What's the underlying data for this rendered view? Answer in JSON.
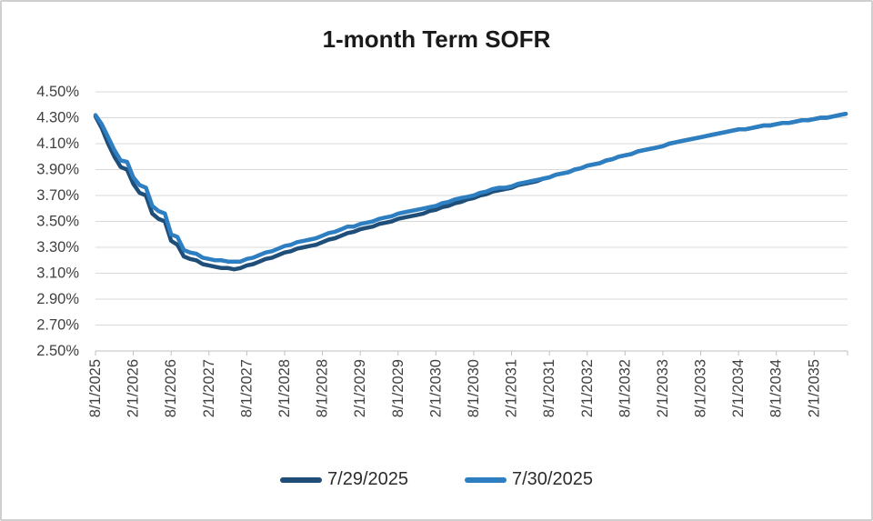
{
  "title": "1-month Term SOFR",
  "colors": {
    "series_7_29": "#1f4e79",
    "series_7_30": "#2d7fc1",
    "gridline": "#d9d9d9",
    "axis_line": "#bfbfbf",
    "axis_label_text": "#404040",
    "title_text": "#1a1a1a",
    "frame_border": "#cfcfcf",
    "background": "#ffffff"
  },
  "chart_data": {
    "type": "line",
    "title": "1-month Term SOFR",
    "xlabel": "",
    "ylabel": "",
    "x_unit": "monthly forward dates, Aug 2025 through Jul 2035",
    "x_tick_labels": [
      "8/1/2025",
      "2/1/2026",
      "8/1/2026",
      "2/1/2027",
      "8/1/2027",
      "2/1/2028",
      "8/1/2028",
      "2/1/2029",
      "8/1/2029",
      "2/1/2030",
      "8/1/2030",
      "2/1/2031",
      "8/1/2031",
      "2/1/2032",
      "8/1/2032",
      "2/1/2033",
      "8/1/2033",
      "2/1/2034",
      "8/1/2034",
      "2/1/2035"
    ],
    "y_tick_labels": [
      "4.50%",
      "4.30%",
      "4.10%",
      "3.90%",
      "3.70%",
      "3.50%",
      "3.30%",
      "3.10%",
      "2.90%",
      "2.70%",
      "2.50%"
    ],
    "ylim": [
      2.5,
      4.5
    ],
    "y_tick_step": 0.2,
    "grid": "horizontal",
    "legend_position": "bottom",
    "series": [
      {
        "name": "7/29/2025",
        "color": "#1f4e79",
        "values": [
          4.31,
          4.22,
          4.1,
          4.0,
          3.92,
          3.9,
          3.79,
          3.72,
          3.7,
          3.56,
          3.52,
          3.5,
          3.35,
          3.32,
          3.23,
          3.21,
          3.2,
          3.17,
          3.16,
          3.15,
          3.14,
          3.14,
          3.13,
          3.14,
          3.16,
          3.17,
          3.19,
          3.21,
          3.22,
          3.24,
          3.26,
          3.27,
          3.29,
          3.3,
          3.31,
          3.32,
          3.34,
          3.36,
          3.37,
          3.39,
          3.41,
          3.42,
          3.44,
          3.45,
          3.46,
          3.48,
          3.49,
          3.5,
          3.52,
          3.53,
          3.54,
          3.55,
          3.56,
          3.58,
          3.59,
          3.61,
          3.62,
          3.64,
          3.65,
          3.67,
          3.68,
          3.7,
          3.71,
          3.73,
          3.74,
          3.75,
          3.76,
          3.78,
          3.79,
          3.8,
          3.81,
          3.83,
          3.84,
          3.86,
          3.87,
          3.88,
          3.9,
          3.91,
          3.93,
          3.94,
          3.95,
          3.97,
          3.98,
          4.0,
          4.01,
          4.02,
          4.04,
          4.05,
          4.06,
          4.07,
          4.08,
          4.1,
          4.11,
          4.12,
          4.13,
          4.14,
          4.15,
          4.16,
          4.17,
          4.18,
          4.19,
          4.2,
          4.21,
          4.21,
          4.22,
          4.23,
          4.24,
          4.24,
          4.25,
          4.26,
          4.26,
          4.27,
          4.28,
          4.28,
          4.29,
          4.3,
          4.3,
          4.31,
          4.32,
          4.33
        ]
      },
      {
        "name": "7/30/2025",
        "color": "#2d7fc1",
        "values": [
          4.32,
          4.25,
          4.15,
          4.05,
          3.97,
          3.96,
          3.84,
          3.78,
          3.76,
          3.62,
          3.58,
          3.56,
          3.4,
          3.38,
          3.28,
          3.26,
          3.25,
          3.22,
          3.21,
          3.2,
          3.2,
          3.19,
          3.19,
          3.19,
          3.21,
          3.22,
          3.24,
          3.26,
          3.27,
          3.29,
          3.31,
          3.32,
          3.34,
          3.35,
          3.36,
          3.37,
          3.39,
          3.41,
          3.42,
          3.44,
          3.46,
          3.46,
          3.48,
          3.49,
          3.5,
          3.52,
          3.53,
          3.54,
          3.56,
          3.57,
          3.58,
          3.59,
          3.6,
          3.61,
          3.62,
          3.64,
          3.65,
          3.67,
          3.68,
          3.69,
          3.7,
          3.72,
          3.73,
          3.75,
          3.76,
          3.76,
          3.77,
          3.79,
          3.8,
          3.81,
          3.82,
          3.83,
          3.84,
          3.86,
          3.87,
          3.88,
          3.9,
          3.91,
          3.93,
          3.94,
          3.95,
          3.97,
          3.98,
          4.0,
          4.01,
          4.02,
          4.04,
          4.05,
          4.06,
          4.07,
          4.08,
          4.1,
          4.11,
          4.12,
          4.13,
          4.14,
          4.15,
          4.16,
          4.17,
          4.18,
          4.19,
          4.2,
          4.21,
          4.21,
          4.22,
          4.23,
          4.24,
          4.24,
          4.25,
          4.26,
          4.26,
          4.27,
          4.28,
          4.28,
          4.29,
          4.3,
          4.3,
          4.31,
          4.32,
          4.33
        ]
      }
    ]
  }
}
